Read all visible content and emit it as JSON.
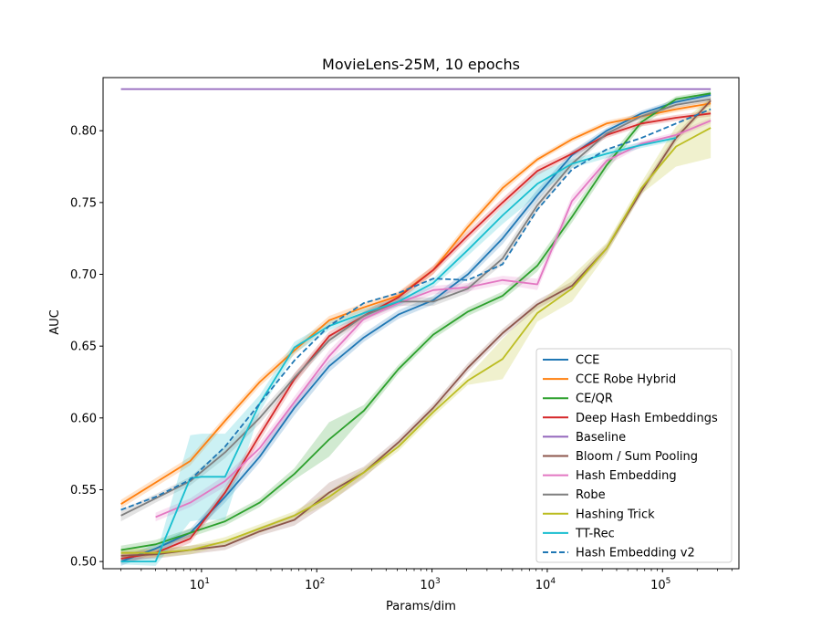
{
  "chart_data": {
    "type": "line",
    "title": "MovieLens-25M, 10 epochs",
    "xlabel": "Params/dim",
    "ylabel": "AUC",
    "xscale": "log",
    "xlim": [
      1.4,
      460000
    ],
    "ylim": [
      0.495,
      0.837
    ],
    "x_ticks": [
      10,
      100,
      1000,
      10000,
      100000
    ],
    "x_tick_labels": [
      [
        "10",
        "1"
      ],
      [
        "10",
        "2"
      ],
      [
        "10",
        "3"
      ],
      [
        "10",
        "4"
      ],
      [
        "10",
        "5"
      ]
    ],
    "y_ticks": [
      0.5,
      0.55,
      0.6,
      0.65,
      0.7,
      0.75,
      0.8
    ],
    "y_tick_labels": [
      "0.50",
      "0.55",
      "0.60",
      "0.65",
      "0.70",
      "0.75",
      "0.80"
    ],
    "grid": false,
    "legend_position": "lower-right",
    "series": [
      {
        "name": "CCE",
        "color": "#1f77b4",
        "dash": false,
        "x": [
          2,
          4,
          8,
          16,
          32,
          64,
          128,
          256,
          512,
          1024,
          2048,
          4096,
          8192,
          16384,
          32768,
          65536,
          131072,
          262144
        ],
        "y": [
          0.5,
          0.509,
          0.52,
          0.545,
          0.573,
          0.607,
          0.636,
          0.656,
          0.672,
          0.682,
          0.7,
          0.725,
          0.755,
          0.783,
          0.8,
          0.812,
          0.82,
          0.825
        ],
        "band": [
          0.003,
          0.003,
          0.003,
          0.004,
          0.004,
          0.005,
          0.004,
          0.003,
          0.003,
          0.003,
          0.003,
          0.004,
          0.004,
          0.003,
          0.002,
          0.002,
          0.002,
          0.002
        ]
      },
      {
        "name": "CCE Robe Hybrid",
        "color": "#ff7f0e",
        "dash": false,
        "x": [
          2,
          4,
          8,
          16,
          32,
          64,
          128,
          256,
          512,
          1024,
          2048,
          4096,
          8192,
          16384,
          32768,
          65536,
          131072,
          262144
        ],
        "y": [
          0.54,
          0.555,
          0.57,
          0.598,
          0.625,
          0.647,
          0.668,
          0.677,
          0.685,
          0.703,
          0.733,
          0.76,
          0.78,
          0.794,
          0.805,
          0.81,
          0.815,
          0.819
        ],
        "band": [
          0.003,
          0.003,
          0.003,
          0.003,
          0.003,
          0.003,
          0.003,
          0.003,
          0.003,
          0.003,
          0.003,
          0.003,
          0.002,
          0.002,
          0.002,
          0.002,
          0.002,
          0.002
        ]
      },
      {
        "name": "CE/QR",
        "color": "#2ca02c",
        "dash": false,
        "x": [
          2,
          4,
          8,
          16,
          32,
          64,
          128,
          256,
          512,
          1024,
          2048,
          4096,
          8192,
          16384,
          32768,
          65536,
          131072,
          262144
        ],
        "y": [
          0.508,
          0.512,
          0.52,
          0.528,
          0.541,
          0.561,
          0.585,
          0.605,
          0.634,
          0.658,
          0.674,
          0.685,
          0.706,
          0.74,
          0.776,
          0.806,
          0.822,
          0.826
        ],
        "band": [
          0.003,
          0.003,
          0.003,
          0.003,
          0.003,
          0.004,
          0.012,
          0.004,
          0.003,
          0.003,
          0.003,
          0.003,
          0.004,
          0.004,
          0.004,
          0.003,
          0.002,
          0.002
        ]
      },
      {
        "name": "Deep Hash Embeddings",
        "color": "#d62728",
        "dash": false,
        "x": [
          2,
          4,
          8,
          16,
          32,
          64,
          128,
          256,
          512,
          1024,
          2048,
          4096,
          8192,
          16384,
          32768,
          65536,
          131072,
          262144
        ],
        "y": [
          0.502,
          0.506,
          0.516,
          0.548,
          0.588,
          0.627,
          0.657,
          0.671,
          0.684,
          0.703,
          0.727,
          0.75,
          0.772,
          0.784,
          0.797,
          0.805,
          0.809,
          0.812
        ],
        "band": [
          0.003,
          0.003,
          0.003,
          0.004,
          0.004,
          0.004,
          0.003,
          0.003,
          0.003,
          0.003,
          0.003,
          0.003,
          0.003,
          0.002,
          0.002,
          0.002,
          0.002,
          0.002
        ]
      },
      {
        "name": "Baseline",
        "color": "#9467bd",
        "dash": false,
        "x": [
          2,
          262144
        ],
        "y": [
          0.829,
          0.829
        ],
        "band": [
          0.0005,
          0.0005
        ]
      },
      {
        "name": "Bloom / Sum Pooling",
        "color": "#8c564b",
        "dash": false,
        "x": [
          2,
          4,
          8,
          16,
          32,
          64,
          128,
          256,
          512,
          1024,
          2048,
          4096,
          8192,
          16384,
          32768,
          65536,
          131072,
          262144
        ],
        "y": [
          0.504,
          0.505,
          0.508,
          0.511,
          0.521,
          0.529,
          0.548,
          0.562,
          0.583,
          0.607,
          0.635,
          0.659,
          0.679,
          0.692,
          0.718,
          0.758,
          0.795,
          0.821
        ],
        "band": [
          0.003,
          0.003,
          0.003,
          0.003,
          0.003,
          0.004,
          0.007,
          0.004,
          0.003,
          0.003,
          0.003,
          0.003,
          0.003,
          0.003,
          0.003,
          0.003,
          0.003,
          0.002
        ]
      },
      {
        "name": "Hash Embedding",
        "color": "#e377c2",
        "dash": false,
        "x": [
          4,
          8,
          16,
          32,
          64,
          128,
          256,
          512,
          1024,
          2048,
          4096,
          8192,
          16384,
          32768,
          65536,
          131072,
          262144
        ],
        "y": [
          0.531,
          0.541,
          0.556,
          0.579,
          0.611,
          0.643,
          0.669,
          0.68,
          0.689,
          0.691,
          0.696,
          0.693,
          0.751,
          0.779,
          0.791,
          0.797,
          0.807
        ],
        "band": [
          0.003,
          0.003,
          0.004,
          0.004,
          0.004,
          0.004,
          0.003,
          0.003,
          0.003,
          0.003,
          0.003,
          0.004,
          0.004,
          0.003,
          0.002,
          0.002,
          0.002
        ]
      },
      {
        "name": "Robe",
        "color": "#7f7f7f",
        "dash": false,
        "x": [
          2,
          4,
          8,
          16,
          32,
          64,
          128,
          256,
          512,
          1024,
          2048,
          4096,
          8192,
          16384,
          32768,
          65536,
          131072,
          262144
        ],
        "y": [
          0.532,
          0.544,
          0.556,
          0.576,
          0.6,
          0.628,
          0.654,
          0.671,
          0.681,
          0.681,
          0.69,
          0.711,
          0.748,
          0.777,
          0.798,
          0.81,
          0.818,
          0.822
        ],
        "band": [
          0.004,
          0.003,
          0.003,
          0.004,
          0.004,
          0.003,
          0.003,
          0.003,
          0.003,
          0.003,
          0.003,
          0.004,
          0.004,
          0.003,
          0.002,
          0.002,
          0.002,
          0.002
        ]
      },
      {
        "name": "Hashing Trick",
        "color": "#bcbd22",
        "dash": false,
        "x": [
          2,
          4,
          8,
          16,
          32,
          64,
          128,
          256,
          512,
          1024,
          2048,
          4096,
          8192,
          16384,
          32768,
          65536,
          131072,
          262144
        ],
        "y": [
          0.506,
          0.506,
          0.508,
          0.514,
          0.523,
          0.532,
          0.545,
          0.562,
          0.58,
          0.604,
          0.626,
          0.641,
          0.673,
          0.69,
          0.718,
          0.76,
          0.789,
          0.802
        ],
        "band": [
          0.003,
          0.003,
          0.003,
          0.003,
          0.003,
          0.003,
          0.004,
          0.003,
          0.003,
          0.003,
          0.003,
          0.014,
          0.006,
          0.009,
          0.004,
          0.004,
          0.014,
          0.021
        ]
      },
      {
        "name": "TT-Rec",
        "color": "#17becf",
        "dash": false,
        "x": [
          2,
          4,
          8,
          10,
          16,
          32,
          64,
          128,
          256,
          512,
          1024,
          2048,
          4096,
          8192,
          16384,
          32768,
          65536,
          131072
        ],
        "y": [
          0.5,
          0.5,
          0.558,
          0.559,
          0.559,
          0.61,
          0.649,
          0.664,
          0.673,
          0.681,
          0.694,
          0.717,
          0.741,
          0.763,
          0.777,
          0.784,
          0.79,
          0.795
        ],
        "band": [
          0.002,
          0.003,
          0.03,
          0.03,
          0.03,
          0.006,
          0.004,
          0.003,
          0.003,
          0.003,
          0.003,
          0.004,
          0.006,
          0.008,
          0.003,
          0.003,
          0.002,
          0.002
        ]
      },
      {
        "name": "Hash Embedding v2",
        "color": "#1f77b4",
        "dash": true,
        "x": [
          2,
          4,
          8,
          16,
          32,
          64,
          128,
          256,
          512,
          1024,
          2048,
          4096,
          8192,
          16384,
          32768,
          65536,
          131072,
          262144
        ],
        "y": [
          0.536,
          0.545,
          0.557,
          0.58,
          0.61,
          0.64,
          0.664,
          0.68,
          0.687,
          0.697,
          0.696,
          0.707,
          0.745,
          0.773,
          0.787,
          0.795,
          0.805,
          0.815
        ],
        "band": [
          0,
          0,
          0,
          0,
          0,
          0,
          0,
          0,
          0,
          0,
          0,
          0,
          0,
          0,
          0,
          0,
          0,
          0
        ]
      }
    ]
  }
}
